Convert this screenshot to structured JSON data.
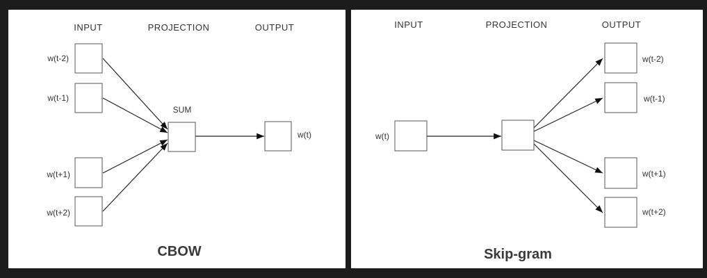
{
  "cbow": {
    "headers": {
      "input": "INPUT",
      "projection": "PROJECTION",
      "output": "OUTPUT"
    },
    "inputs": [
      "w(t-2)",
      "w(t-1)",
      "w(t+1)",
      "w(t+2)"
    ],
    "projection_label": "SUM",
    "output": "w(t)",
    "title": "CBOW"
  },
  "skipgram": {
    "headers": {
      "input": "INPUT",
      "projection": "PROJECTION",
      "output": "OUTPUT"
    },
    "input": "w(t)",
    "outputs": [
      "w(t-2)",
      "w(t-1)",
      "w(t+1)",
      "w(t+2)"
    ],
    "title": "Skip-gram"
  },
  "colors": {
    "background": "#1c1c1c",
    "panel": "#ffffff",
    "line": "#222222",
    "box_stroke": "#555555",
    "text": "#333333"
  }
}
